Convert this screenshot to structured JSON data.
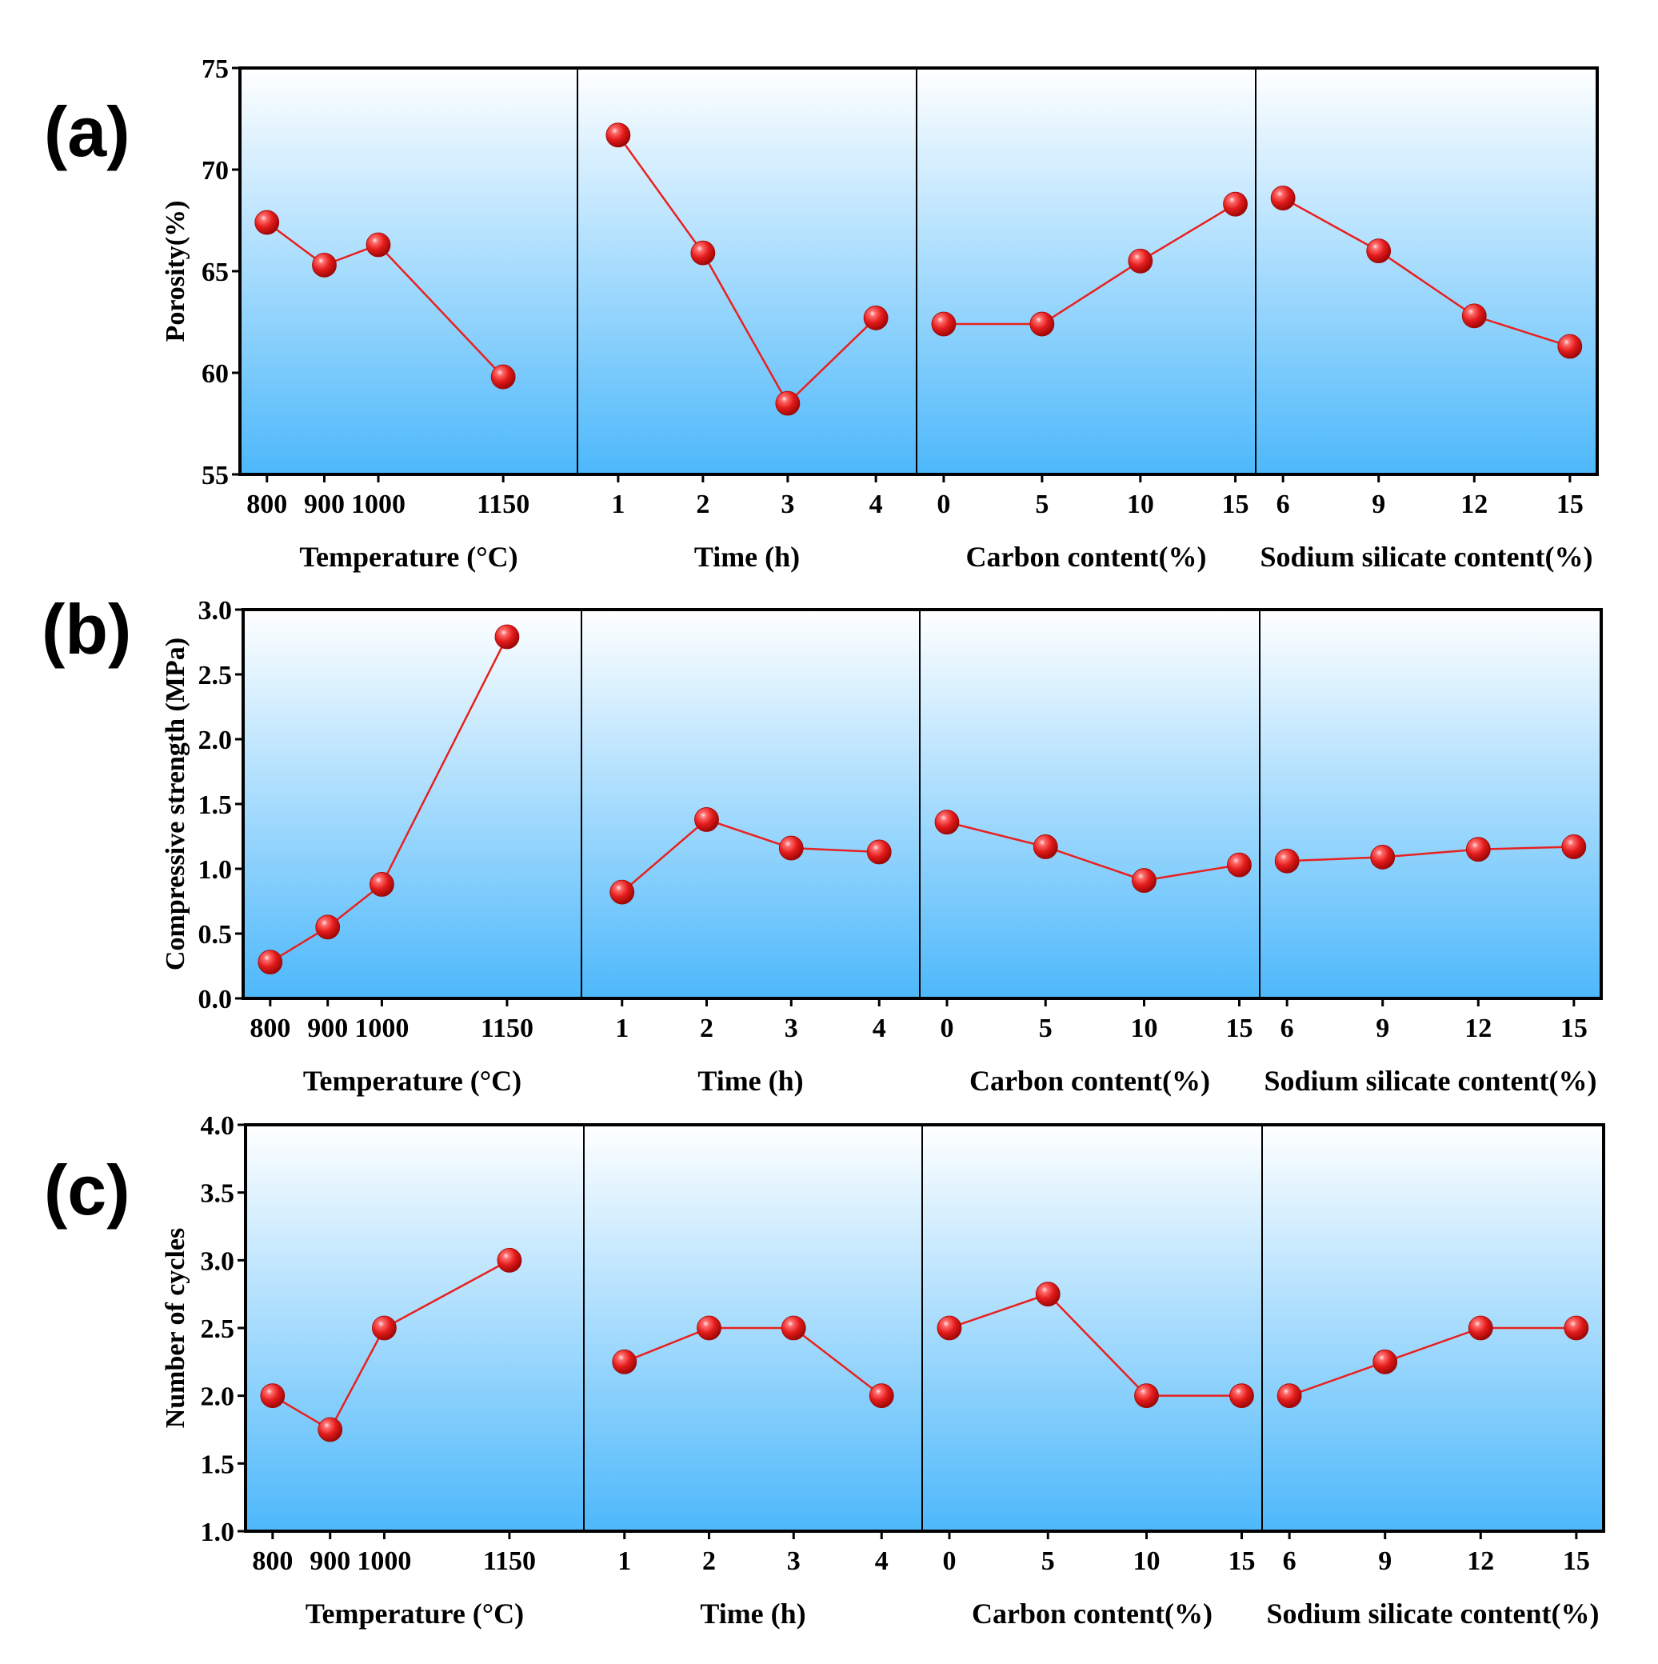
{
  "chart_data": [
    {
      "type": "line",
      "panel_label": "(a)",
      "ylabel": "Porosity(%)",
      "ylim": [
        55,
        75
      ],
      "yticks": [
        55,
        60,
        65,
        70,
        75
      ],
      "ytick_labels": [
        "55",
        "60",
        "65",
        "70",
        "75"
      ],
      "subplots": [
        {
          "xlabel": "Temperature (°C)",
          "categories": [
            "800",
            "900",
            "1000",
            "1150"
          ],
          "values": [
            67.4,
            65.3,
            66.3,
            59.8
          ]
        },
        {
          "xlabel": "Time (h)",
          "categories": [
            "1",
            "2",
            "3",
            "4"
          ],
          "values": [
            71.7,
            65.9,
            58.5,
            62.7
          ]
        },
        {
          "xlabel": "Carbon content(%)",
          "categories": [
            "0",
            "5",
            "10",
            "15"
          ],
          "values": [
            62.4,
            62.4,
            65.5,
            68.3
          ]
        },
        {
          "xlabel": "Sodium silicate content(%)",
          "categories": [
            "6",
            "9",
            "12",
            "15"
          ],
          "values": [
            68.6,
            66.0,
            62.8,
            61.3
          ]
        }
      ]
    },
    {
      "type": "line",
      "panel_label": "(b)",
      "ylabel": "Compressive strength (MPa)",
      "ylim": [
        0.0,
        3.0
      ],
      "yticks": [
        0.0,
        0.5,
        1.0,
        1.5,
        2.0,
        2.5,
        3.0
      ],
      "ytick_labels": [
        "0.0",
        "0.5",
        "1.0",
        "1.5",
        "2.0",
        "2.5",
        "3.0"
      ],
      "subplots": [
        {
          "xlabel": "Temperature (°C)",
          "categories": [
            "800",
            "900",
            "1000",
            "1150"
          ],
          "values": [
            0.28,
            0.55,
            0.88,
            2.79
          ]
        },
        {
          "xlabel": "Time (h)",
          "categories": [
            "1",
            "2",
            "3",
            "4"
          ],
          "values": [
            0.82,
            1.38,
            1.16,
            1.13
          ]
        },
        {
          "xlabel": "Carbon content(%)",
          "categories": [
            "0",
            "5",
            "10",
            "15"
          ],
          "values": [
            1.36,
            1.17,
            0.91,
            1.03
          ]
        },
        {
          "xlabel": "Sodium silicate content(%)",
          "categories": [
            "6",
            "9",
            "12",
            "15"
          ],
          "values": [
            1.06,
            1.09,
            1.15,
            1.17
          ]
        }
      ]
    },
    {
      "type": "line",
      "panel_label": "(c)",
      "ylabel": "Number of cycles",
      "ylim": [
        1.0,
        4.0
      ],
      "yticks": [
        1.0,
        1.5,
        2.0,
        2.5,
        3.0,
        3.5,
        4.0
      ],
      "ytick_labels": [
        "1.0",
        "1.5",
        "2.0",
        "2.5",
        "3.0",
        "3.5",
        "4.0"
      ],
      "subplots": [
        {
          "xlabel": "Temperature (°C)",
          "categories": [
            "800",
            "900",
            "1000",
            "1150"
          ],
          "values": [
            2.0,
            1.75,
            2.5,
            3.0
          ]
        },
        {
          "xlabel": "Time (h)",
          "categories": [
            "1",
            "2",
            "3",
            "4"
          ],
          "values": [
            2.25,
            2.5,
            2.5,
            2.0
          ]
        },
        {
          "xlabel": "Carbon content(%)",
          "categories": [
            "0",
            "5",
            "10",
            "15"
          ],
          "values": [
            2.5,
            2.75,
            2.0,
            2.0
          ]
        },
        {
          "xlabel": "Sodium silicate content(%)",
          "categories": [
            "6",
            "9",
            "12",
            "15"
          ],
          "values": [
            2.0,
            2.25,
            2.5,
            2.5
          ]
        }
      ]
    }
  ],
  "colors": {
    "line": "#e8201e",
    "marker": "#e31b1b",
    "gradient_top": "#ffffff",
    "gradient_bottom": "#4db8fb",
    "frame": "#000000"
  }
}
